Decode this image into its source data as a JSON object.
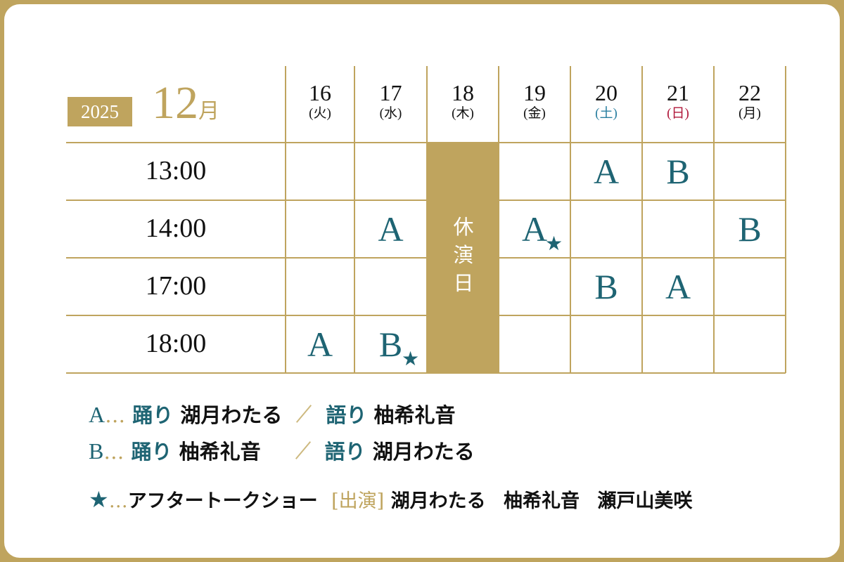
{
  "header": {
    "year": "2025",
    "month": "12",
    "month_suffix": "月"
  },
  "days": [
    {
      "num": "16",
      "weekday": "(火)",
      "color": "#111111"
    },
    {
      "num": "17",
      "weekday": "(水)",
      "color": "#111111"
    },
    {
      "num": "18",
      "weekday": "(木)",
      "color": "#111111"
    },
    {
      "num": "19",
      "weekday": "(金)",
      "color": "#111111"
    },
    {
      "num": "20",
      "weekday": "(土)",
      "color": "#2a7fa0"
    },
    {
      "num": "21",
      "weekday": "(日)",
      "color": "#b0173a"
    },
    {
      "num": "22",
      "weekday": "(月)",
      "color": "#111111"
    }
  ],
  "times": [
    "13:00",
    "14:00",
    "17:00",
    "18:00"
  ],
  "schedule": [
    [
      "",
      "",
      "",
      "",
      "A",
      "B",
      ""
    ],
    [
      "",
      "A",
      "",
      "A★",
      "",
      "",
      "B"
    ],
    [
      "",
      "",
      "",
      "",
      "B",
      "A",
      ""
    ],
    [
      "A",
      "B★",
      "",
      "",
      "",
      "",
      ""
    ]
  ],
  "rest_day": {
    "day_index": 2,
    "label": "休\n演\n日"
  },
  "legend": {
    "a": {
      "letter": "A",
      "dots": "…",
      "dance_label": "踊り",
      "dance": "湖月わたる",
      "narr_label": "語り",
      "narr": "柚希礼音"
    },
    "b": {
      "letter": "B",
      "dots": "…",
      "dance_label": "踊り",
      "dance": "柚希礼音",
      "narr_label": "語り",
      "narr": "湖月わたる"
    },
    "star": {
      "symbol": "★",
      "dots": "…",
      "title": "アフタートークショー",
      "cast_label": "[出演]",
      "cast": [
        "湖月わたる",
        "柚希礼音",
        "瀬戸山美咲"
      ]
    }
  },
  "colors": {
    "gold": "#bfa45e",
    "teal": "#1e6473",
    "saturday": "#2a7fa0",
    "sunday": "#b0173a"
  }
}
